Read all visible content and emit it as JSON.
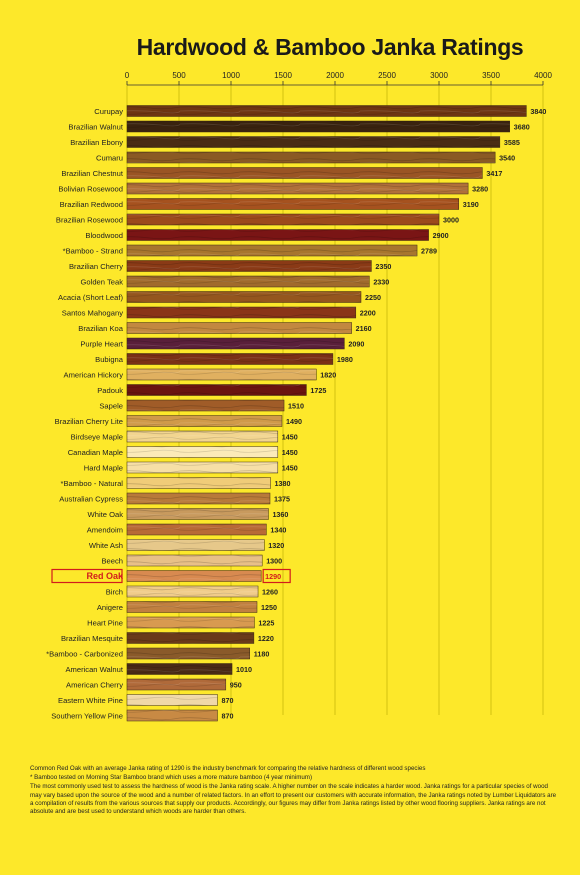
{
  "chart_data": {
    "type": "bar",
    "orientation": "horizontal",
    "title": "Hardwood & Bamboo Janka Ratings",
    "xlim": [
      0,
      4000
    ],
    "xticks": [
      0,
      500,
      1000,
      1500,
      2000,
      2500,
      3000,
      3500,
      4000
    ],
    "grid": true,
    "highlight_category": "Red Oak",
    "categories": [
      "Curupay",
      "Brazilian Walnut",
      "Brazilian Ebony",
      "Cumaru",
      "Brazilian Chestnut",
      "Bolivian Rosewood",
      "Brazilian Redwood",
      "Brazilian Rosewood",
      "Bloodwood",
      "*Bamboo - Strand",
      "Brazilian Cherry",
      "Golden Teak",
      "Acacia (Short Leaf)",
      "Santos Mahogany",
      "Brazilian Koa",
      "Purple Heart",
      "Bubigna",
      "American Hickory",
      "Padouk",
      "Sapele",
      "Brazilian Cherry Lite",
      "Birdseye Maple",
      "Canadian Maple",
      "Hard Maple",
      "*Bamboo - Natural",
      "Australian Cypress",
      "White Oak",
      "Amendoim",
      "White Ash",
      "Beech",
      "Red Oak",
      "Birch",
      "Anigere",
      "Heart Pine",
      "Brazilian Mesquite",
      "*Bamboo - Carbonized",
      "American Walnut",
      "American Cherry",
      "Eastern White Pine",
      "Southern Yellow Pine"
    ],
    "values": [
      3840,
      3680,
      3585,
      3540,
      3417,
      3280,
      3190,
      3000,
      2900,
      2789,
      2350,
      2330,
      2250,
      2200,
      2160,
      2090,
      1980,
      1820,
      1725,
      1510,
      1490,
      1450,
      1450,
      1450,
      1380,
      1375,
      1360,
      1340,
      1320,
      1300,
      1290,
      1260,
      1250,
      1225,
      1220,
      1180,
      1010,
      950,
      870,
      870
    ],
    "bar_colors": [
      "#6e3512",
      "#3a230f",
      "#4a2c14",
      "#8a5a24",
      "#9a5424",
      "#b0703a",
      "#a6521f",
      "#9c4a1c",
      "#7a1515",
      "#a8762e",
      "#8a3a16",
      "#a06a2c",
      "#94561e",
      "#8a3418",
      "#c28840",
      "#5a1f3a",
      "#7a3016",
      "#e0b060",
      "#6a1410",
      "#a05c28",
      "#d09a4a",
      "#f2d590",
      "#fbeab8",
      "#f6dfa6",
      "#f0cc78",
      "#b87a3a",
      "#c89a5e",
      "#b86a36",
      "#e6c88a",
      "#e8c088",
      "#d88a50",
      "#f0cc8a",
      "#c08040",
      "#d89a50",
      "#6a3a1a",
      "#8a5a2a",
      "#4a2a16",
      "#b06a3a",
      "#f0d8a8",
      "#c88a44"
    ]
  },
  "notes": {
    "line1": "Common Red Oak with an average Janka rating of 1290 is the industry benchmark for comparing the relative hardness of different wood species",
    "line2": "* Bamboo tested on Morning Star Bamboo brand which uses a more mature bamboo (4 year minimum)",
    "line3": "The most commonly used test to assess the hardness of wood is the Janka rating scale. A higher number on the scale indicates a harder wood. Janka ratings for a particular species of wood may vary based upon the source of the wood and a number of related factors.  In an effort to present our customers with accurate information, the Janka ratings noted by Lumber Liquidators are a compilation of results from the various sources that supply our products.  Accordingly, our figures may differ from Janka ratings listed by other wood flooring suppliers.  Janka ratings are not absolute and are best used to understand which woods are harder than others."
  },
  "colors": {
    "background": "#fde82a",
    "highlight_text": "#d21c1c",
    "gridline": "#b8a800"
  }
}
